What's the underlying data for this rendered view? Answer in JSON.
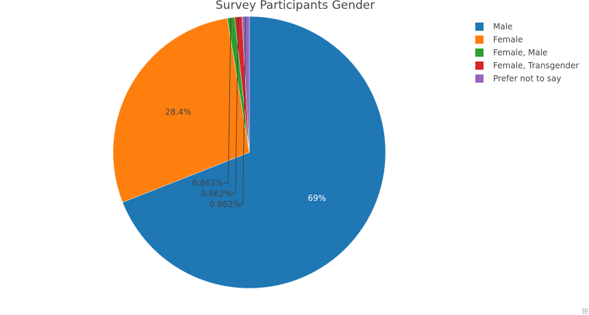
{
  "chart_data": {
    "type": "pie",
    "title": "Survey Participants Gender",
    "categories": [
      "Male",
      "Female",
      "Female, Male",
      "Female, Transgender",
      "Prefer not to say"
    ],
    "values": [
      69.0,
      28.4,
      0.862,
      0.862,
      0.862
    ],
    "value_labels": [
      "69%",
      "28.4%",
      "0.862%",
      "0.862%",
      "0.862%"
    ],
    "colors": [
      "#1f77b4",
      "#ff7f0e",
      "#2ca02c",
      "#d62728",
      "#9467bd"
    ],
    "sort": "descending",
    "direction": "clockwise",
    "rotation_start": "12 o'clock",
    "legend_position": "top-right"
  }
}
